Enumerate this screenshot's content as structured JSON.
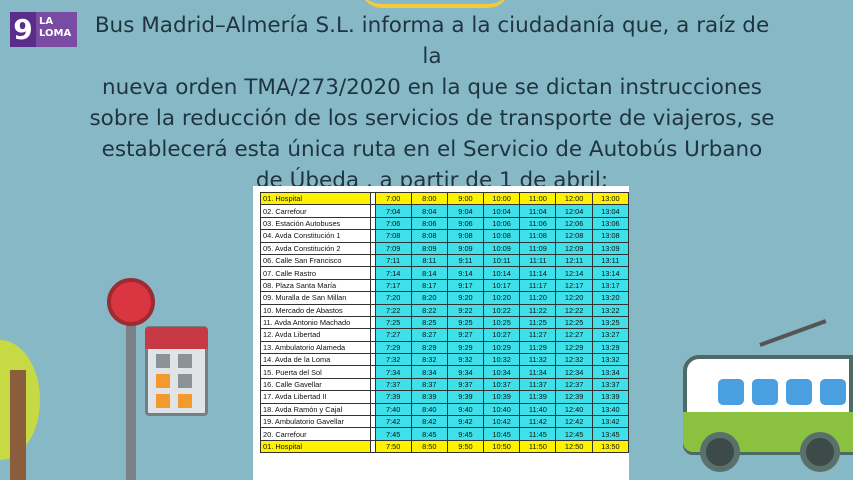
{
  "logo": {
    "number": "9",
    "line1": "LA",
    "line2": "LOMA"
  },
  "notice": {
    "lines": [
      "Bus Madrid–Almería S.L. informa a la ciudadanía que, a raíz de la",
      "nueva orden TMA/273/2020 en la que se dictan instrucciones",
      "sobre la reducción de los servicios de transporte de viajeros, se",
      "establecerá  esta única ruta en el Servicio de Autobús Urbano",
      "de Úbeda , a partir de 1 de abril:"
    ]
  },
  "schedule": {
    "rows": [
      {
        "stop": "01. Hospital",
        "times": [
          "7:00",
          "8:00",
          "9:00",
          "10:00",
          "11:00",
          "12:00",
          "13:00"
        ],
        "highlight": true
      },
      {
        "stop": "02. Carrefour",
        "times": [
          "7:04",
          "8:04",
          "9:04",
          "10:04",
          "11:04",
          "12:04",
          "13:04"
        ]
      },
      {
        "stop": "03. Estación Autobuses",
        "times": [
          "7:06",
          "8:06",
          "9:06",
          "10:06",
          "11:06",
          "12:06",
          "13:06"
        ]
      },
      {
        "stop": "04. Avda Constitución 1",
        "times": [
          "7:08",
          "8:08",
          "9:08",
          "10:08",
          "11:08",
          "12:08",
          "13:08"
        ]
      },
      {
        "stop": "05. Avda Constitución 2",
        "times": [
          "7:09",
          "8:09",
          "9:09",
          "10:09",
          "11:09",
          "12:09",
          "13:09"
        ]
      },
      {
        "stop": "06. Calle San Francisco",
        "times": [
          "7:11",
          "8:11",
          "9:11",
          "10:11",
          "11:11",
          "12:11",
          "13:11"
        ]
      },
      {
        "stop": "07. Calle Rastro",
        "times": [
          "7:14",
          "8:14",
          "9:14",
          "10:14",
          "11:14",
          "12:14",
          "13:14"
        ]
      },
      {
        "stop": "08. Plaza Santa María",
        "times": [
          "7:17",
          "8:17",
          "9:17",
          "10:17",
          "11:17",
          "12:17",
          "13:17"
        ]
      },
      {
        "stop": "09. Muralla de San Millan",
        "times": [
          "7:20",
          "8:20",
          "9:20",
          "10:20",
          "11:20",
          "12:20",
          "13:20"
        ]
      },
      {
        "stop": "10. Mercado de Abastos",
        "times": [
          "7:22",
          "8:22",
          "9:22",
          "10:22",
          "11:22",
          "12:22",
          "13:22"
        ]
      },
      {
        "stop": "11. Avda Antonio Machado",
        "times": [
          "7:25",
          "8:25",
          "9:25",
          "10:25",
          "11:25",
          "12:25",
          "13:25"
        ]
      },
      {
        "stop": "12. Avda Libertad",
        "times": [
          "7:27",
          "8:27",
          "9:27",
          "10:27",
          "11:27",
          "12:27",
          "13:27"
        ]
      },
      {
        "stop": "13. Ambulatorio Alameda",
        "times": [
          "7:29",
          "8:29",
          "9:29",
          "10:29",
          "11:29",
          "12:29",
          "13:29"
        ]
      },
      {
        "stop": "14. Avda de la Loma",
        "times": [
          "7:32",
          "8:32",
          "9:32",
          "10:32",
          "11:32",
          "12:32",
          "13:32"
        ]
      },
      {
        "stop": "15. Puerta del Sol",
        "times": [
          "7:34",
          "8:34",
          "9:34",
          "10:34",
          "11:34",
          "12:34",
          "13:34"
        ]
      },
      {
        "stop": "16. Calle Gavellar",
        "times": [
          "7:37",
          "8:37",
          "9:37",
          "10:37",
          "11:37",
          "12:37",
          "13:37"
        ]
      },
      {
        "stop": "17. Avda Libertad II",
        "times": [
          "7:39",
          "8:39",
          "9:39",
          "10:39",
          "11:39",
          "12:39",
          "13:39"
        ]
      },
      {
        "stop": "18. Avda Ramón y Cajal",
        "times": [
          "7:40",
          "8:40",
          "9:40",
          "10:40",
          "11:40",
          "12:40",
          "13:40"
        ]
      },
      {
        "stop": "19. Ambulatorio Gavellar",
        "times": [
          "7:42",
          "8:42",
          "9:42",
          "10:42",
          "11:42",
          "12:42",
          "13:42"
        ]
      },
      {
        "stop": "20. Carrefour",
        "times": [
          "7:45",
          "8:45",
          "9:45",
          "10:45",
          "11:45",
          "12:45",
          "13:45"
        ]
      },
      {
        "stop": "01. Hospital",
        "times": [
          "7:50",
          "8:50",
          "9:50",
          "10:50",
          "11:50",
          "12:50",
          "13:50"
        ],
        "highlight": true
      }
    ]
  },
  "colors": {
    "background": "#86b9c5",
    "time_cell": "#3ee1ea",
    "highlight": "#fff200",
    "logo": "#5b2d8a"
  },
  "icons": [
    "bus-stop-sign-icon",
    "tree-icon",
    "trolleybus-icon"
  ]
}
